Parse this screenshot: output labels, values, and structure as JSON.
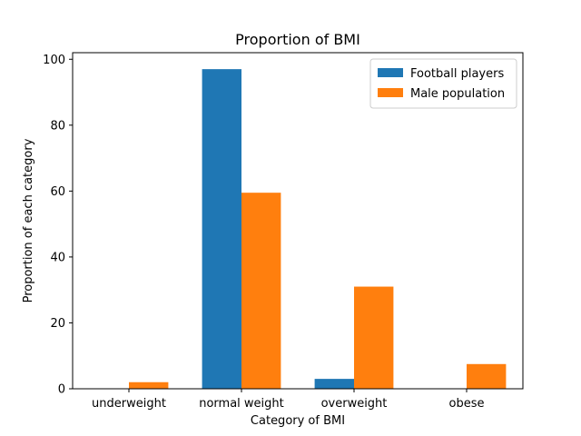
{
  "chart_data": {
    "type": "bar",
    "title": "Proportion of BMI",
    "xlabel": "Category of BMI",
    "ylabel": "Proportion of each category",
    "categories": [
      "underweight",
      "normal weight",
      "overweight",
      "obese"
    ],
    "series": [
      {
        "name": "Football players",
        "values": [
          0,
          97,
          3,
          0
        ],
        "color": "#1f77b4"
      },
      {
        "name": "Male population",
        "values": [
          2,
          59.5,
          31,
          7.5
        ],
        "color": "#ff7f0e"
      }
    ],
    "ylim": [
      0,
      102
    ],
    "yticks": [
      0,
      20,
      40,
      60,
      80,
      100
    ],
    "legend_position": "top-right",
    "grid": false
  }
}
